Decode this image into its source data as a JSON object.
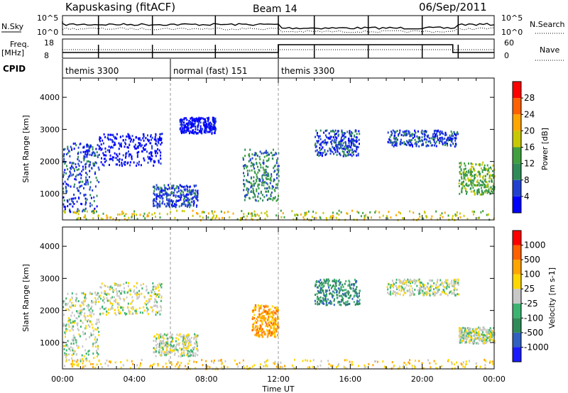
{
  "header": {
    "station": "Kapuskasing (fitACF)",
    "beam": "Beam 14",
    "date": "06/Sep/2011"
  },
  "top_panels": {
    "nsky_label": "N.Sky",
    "nsky_ticks": [
      "10^5",
      "10^0"
    ],
    "nsearch_label": "N.Search",
    "nsearch_ticks": [
      "10^5",
      "10^0"
    ],
    "freq_label": "Freq.",
    "freq_unit": "[MHz]",
    "freq_ticks": [
      "18",
      "8"
    ],
    "nave_label": "Nave",
    "nave_ticks": [
      "60",
      "0"
    ],
    "cpid_label": "CPID",
    "cpid_segments": [
      {
        "label": "themis 3300",
        "start": 0,
        "end": 6
      },
      {
        "label": "normal (fast) 151",
        "start": 6,
        "end": 12
      },
      {
        "label": "themis 3300",
        "start": 12,
        "end": 24
      }
    ]
  },
  "chart_data": [
    {
      "type": "heatmap",
      "name": "power",
      "ylabel": "Slant Range [km]",
      "xlabel": "",
      "x_ticks": [
        "00:00",
        "04:00",
        "08:00",
        "12:00",
        "16:00",
        "20:00",
        "00:00"
      ],
      "xlim": [
        0,
        24
      ],
      "ylim": [
        180,
        4600
      ],
      "y_ticks": [
        1000,
        2000,
        3000,
        4000
      ],
      "colorbar": {
        "label": "Power [dB]",
        "ticks": [
          "4",
          "8",
          "12",
          "16",
          "20",
          "24",
          "28"
        ],
        "colors": [
          "#0000ff",
          "#2040d0",
          "#2e8b57",
          "#40a040",
          "#c8c800",
          "#ffa500",
          "#ff6000",
          "#ff0000"
        ]
      },
      "regions": [
        {
          "t0": 0.0,
          "t1": 2.0,
          "r0": 450,
          "r1": 2600,
          "level": 1
        },
        {
          "t0": 2.0,
          "t1": 5.5,
          "r0": 1900,
          "r1": 2900,
          "level": 0
        },
        {
          "t0": 5.0,
          "t1": 7.5,
          "r0": 600,
          "r1": 1300,
          "level": 1
        },
        {
          "t0": 6.5,
          "t1": 8.5,
          "r0": 2900,
          "r1": 3400,
          "level": 0
        },
        {
          "t0": 10.0,
          "t1": 12.0,
          "r0": 800,
          "r1": 2400,
          "level": 2
        },
        {
          "t0": 14.0,
          "t1": 16.5,
          "r0": 2200,
          "r1": 3000,
          "level": 1
        },
        {
          "t0": 18.0,
          "t1": 22.0,
          "r0": 2500,
          "r1": 3000,
          "level": 1
        },
        {
          "t0": 22.0,
          "t1": 24.0,
          "r0": 1000,
          "r1": 2000,
          "level": 3
        },
        {
          "t0": 0.0,
          "t1": 24.0,
          "r0": 200,
          "r1": 500,
          "level": 4
        }
      ]
    },
    {
      "type": "heatmap",
      "name": "velocity",
      "ylabel": "Slant Range [km]",
      "xlabel": "Time UT",
      "x_ticks": [
        "00:00",
        "04:00",
        "08:00",
        "12:00",
        "16:00",
        "20:00",
        "00:00"
      ],
      "xlim": [
        0,
        24
      ],
      "ylim": [
        180,
        4600
      ],
      "y_ticks": [
        1000,
        2000,
        3000,
        4000
      ],
      "colorbar": {
        "label": "Velocity [m s-1]",
        "ticks": [
          "1000",
          "500",
          "100",
          "25",
          "-25",
          "-100",
          "-500",
          "-1000"
        ],
        "colors": [
          "#1a1aff",
          "#3060c0",
          "#2e8b57",
          "#3cb371",
          "#c8c8c8",
          "#ffd700",
          "#ffa500",
          "#ff6000",
          "#ff0000"
        ]
      },
      "regions": [
        {
          "t0": 0.0,
          "t1": 2.0,
          "r0": 450,
          "r1": 2600,
          "level": 4
        },
        {
          "t0": 2.0,
          "t1": 5.5,
          "r0": 1900,
          "r1": 2900,
          "level": 4
        },
        {
          "t0": 5.0,
          "t1": 7.5,
          "r0": 600,
          "r1": 1300,
          "level": 4
        },
        {
          "t0": 10.5,
          "t1": 12.0,
          "r0": 1200,
          "r1": 2200,
          "level": 6
        },
        {
          "t0": 14.0,
          "t1": 16.5,
          "r0": 2200,
          "r1": 3000,
          "level": 2
        },
        {
          "t0": 18.0,
          "t1": 22.0,
          "r0": 2500,
          "r1": 3000,
          "level": 4
        },
        {
          "t0": 22.0,
          "t1": 24.0,
          "r0": 1000,
          "r1": 1500,
          "level": 4
        },
        {
          "t0": 0.0,
          "t1": 24.0,
          "r0": 200,
          "r1": 500,
          "level": 5
        }
      ]
    }
  ]
}
